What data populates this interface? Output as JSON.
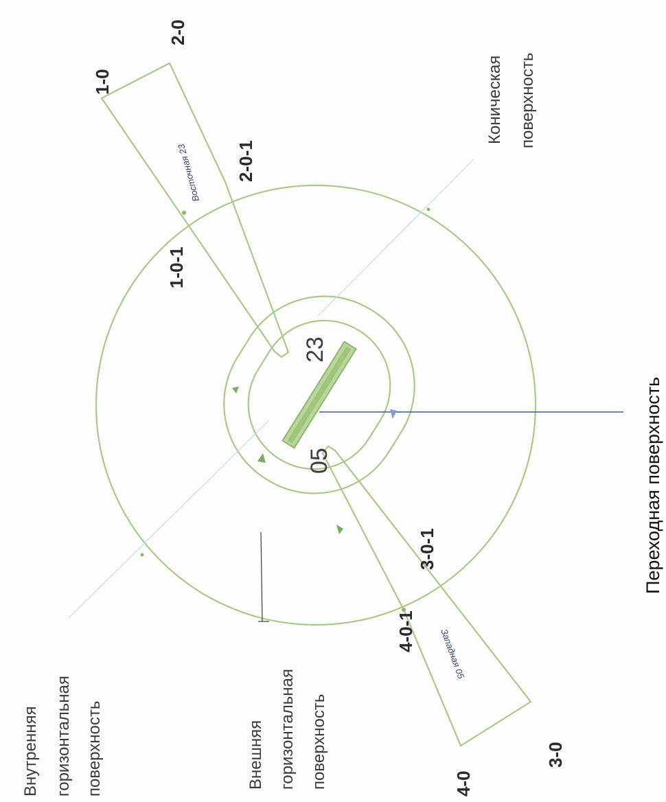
{
  "labels": {
    "p_1_0": "1-0",
    "p_2_0": "2-0",
    "p_3_0": "3-0",
    "p_4_0": "4-0",
    "p_1_0_1": "1-0-1",
    "p_2_0_1": "2-0-1",
    "p_3_0_1": "3-0-1",
    "p_4_0_1": "4-0-1",
    "runway_23": "23",
    "runway_05": "05",
    "approach_east": "Восточная 23",
    "approach_west": "Западная 05"
  },
  "legend": {
    "conical_line1": "Коническая",
    "conical_line2": "поверхность",
    "transitional": "Переходная поверхность",
    "inner_line1": "Внутренняя",
    "inner_line2": "горизонтальная",
    "inner_line3": "поверхность",
    "outer_line1": "Внешняя",
    "outer_line2": "горизонтальная",
    "outer_line3": "поверхность"
  },
  "colors": {
    "surface": "#a9c98a",
    "runway": "#8fb66e",
    "leader": "#3b5a8a"
  }
}
